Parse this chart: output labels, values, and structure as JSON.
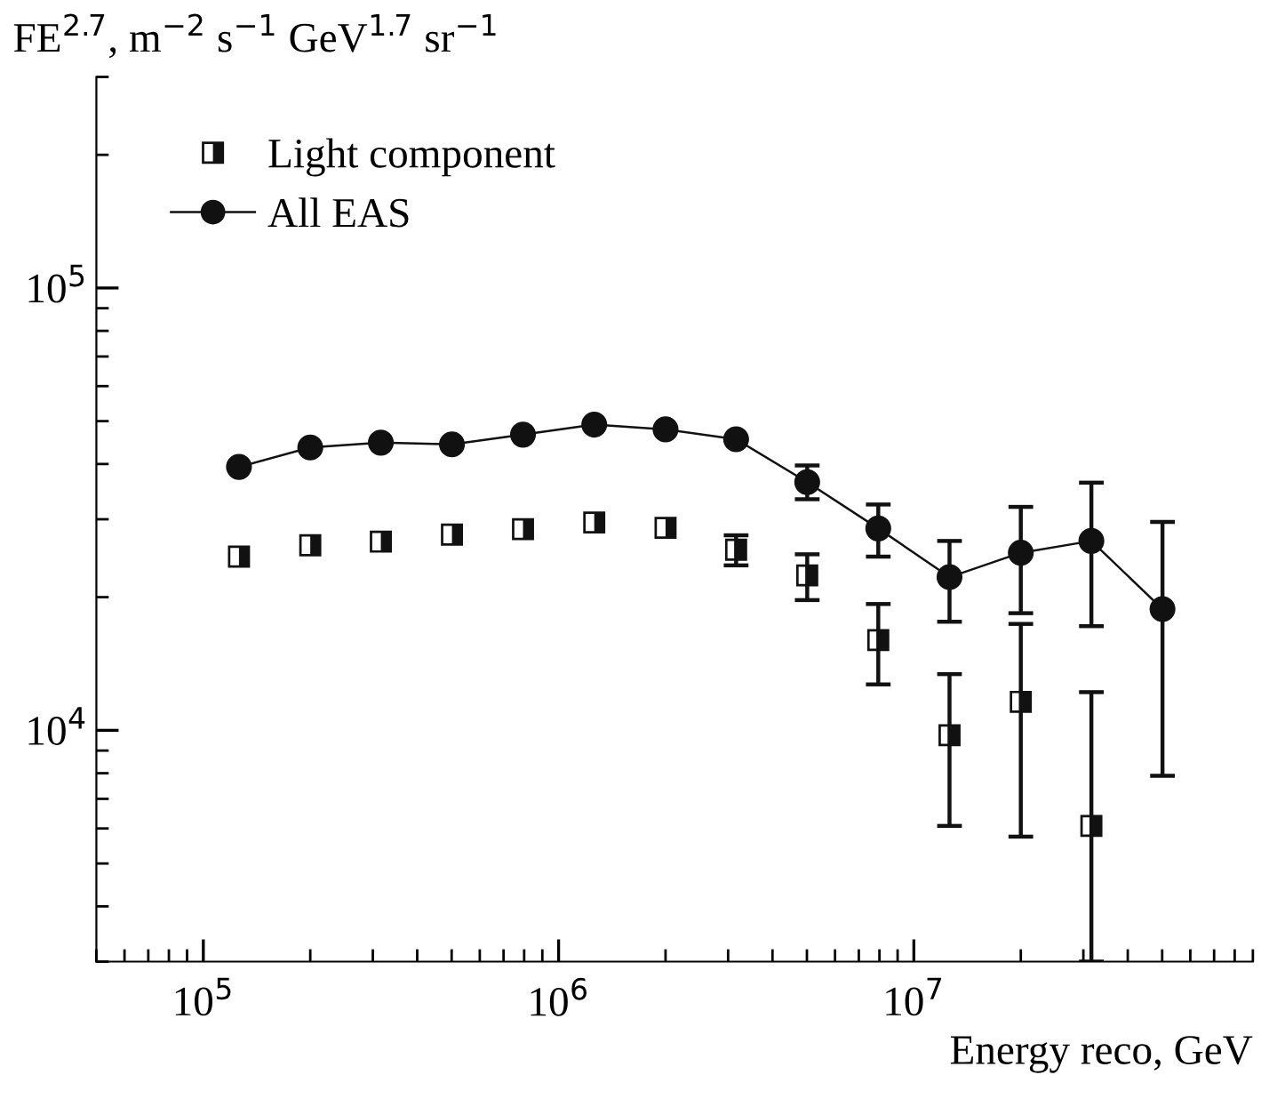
{
  "chart_data": {
    "type": "scatter",
    "xlabel": "Energy reco, GeV",
    "ylabel": "FE$^{2.7}$, m$^{−2}$ s$^{−1}$ GeV$^{1.7}$ sr$^{−1}$",
    "log": "xy",
    "xlim": [
      50000,
      90000000
    ],
    "ylim": [
      3000,
      300000
    ],
    "xticks": [
      {
        "value": 100000,
        "label": "10$^{5}$"
      },
      {
        "value": 1000000,
        "label": "10$^{6}$"
      },
      {
        "value": 10000000,
        "label": "10$^{7}$"
      }
    ],
    "yticks": [
      {
        "value": 10000,
        "label": "10$^{4}$"
      },
      {
        "value": 100000,
        "label": "10$^{5}$"
      }
    ],
    "legend": "top left",
    "grid": false,
    "series": [
      {
        "name": "Light component",
        "color": "#111111",
        "marker": "square",
        "x": [
          126000,
          200000,
          316000,
          501000,
          794000,
          1260000,
          2000000,
          3160000,
          5010000,
          7940000,
          12600000,
          20000000,
          31600000
        ],
        "values": [
          24700,
          26200,
          26700,
          27700,
          28500,
          29500,
          28700,
          25600,
          22400,
          16000,
          9750,
          11600,
          6080
        ],
        "errors": [
          null,
          null,
          null,
          null,
          null,
          null,
          null,
          [
            23600,
            27600
          ],
          [
            19700,
            25000
          ],
          [
            12700,
            19300
          ],
          [
            6080,
            13400
          ],
          [
            5750,
            17400
          ],
          [
            3000,
            12200
          ]
        ]
      },
      {
        "name": "All EAS",
        "type": "line",
        "color": "#111111",
        "marker": "circle",
        "line_style": "solid",
        "x": [
          126000,
          200000,
          316000,
          501000,
          794000,
          1260000,
          2000000,
          3160000,
          5010000,
          7940000,
          12600000,
          20000000,
          31600000,
          50100000
        ],
        "values": [
          39400,
          43600,
          44700,
          44300,
          46600,
          49100,
          47900,
          45500,
          36400,
          28600,
          22200,
          25200,
          26800,
          18800
        ],
        "errors": [
          null,
          null,
          null,
          null,
          null,
          null,
          null,
          null,
          [
            33300,
            39700
          ],
          [
            24700,
            32400
          ],
          [
            17600,
            26800
          ],
          [
            18400,
            32000
          ],
          [
            17200,
            36300
          ],
          [
            7890,
            29600
          ]
        ]
      }
    ]
  }
}
